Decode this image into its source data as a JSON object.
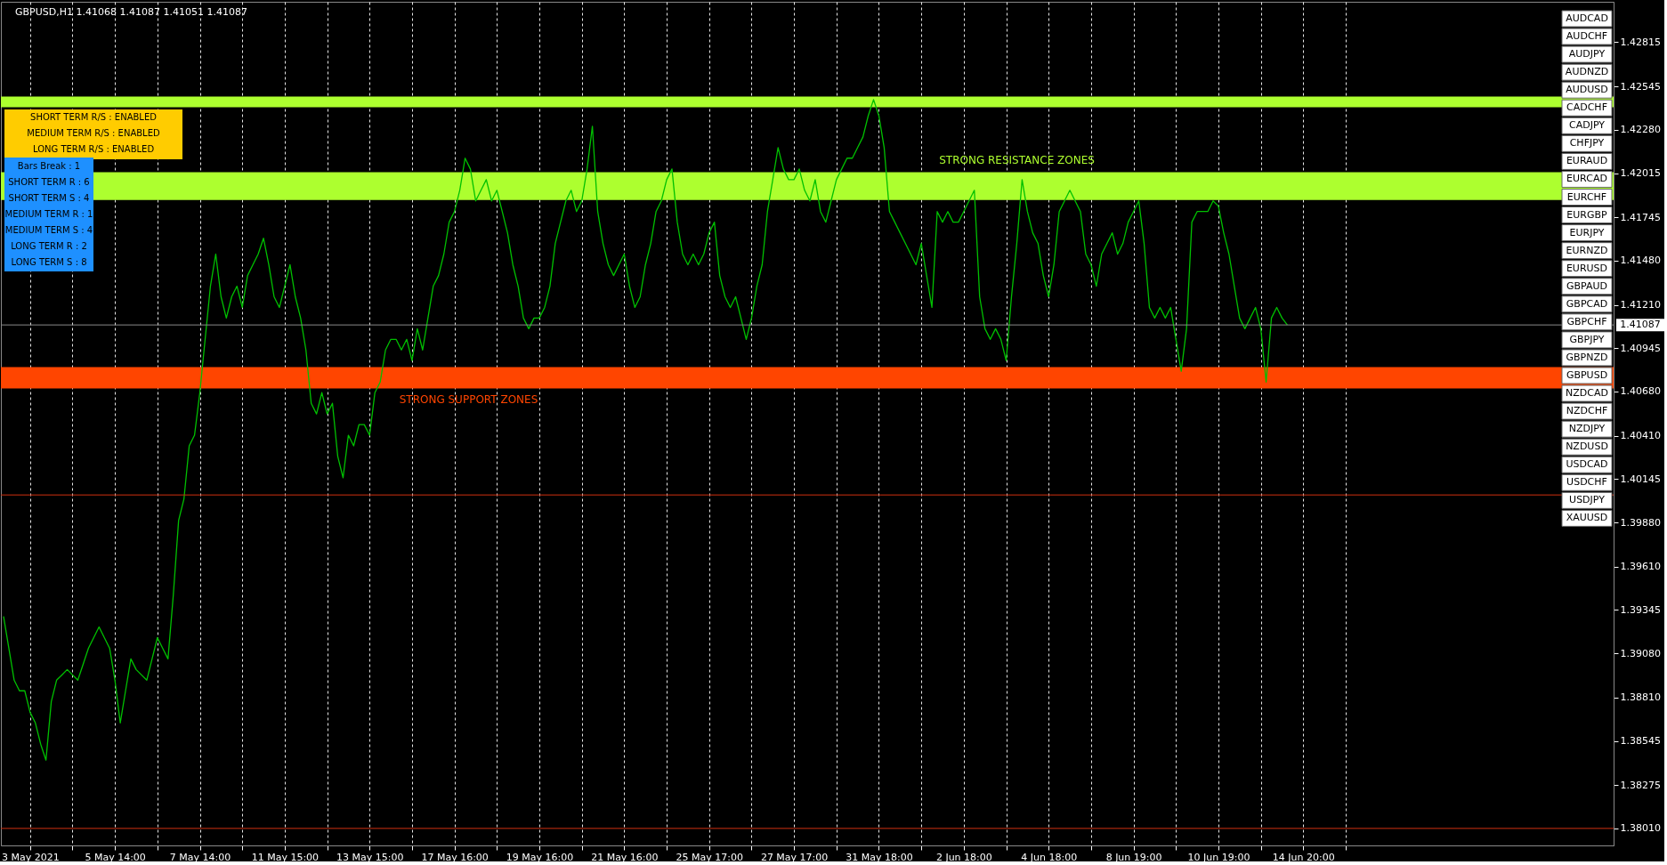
{
  "chart_data": {
    "type": "line",
    "title": "GBPUSD,H1 1.41068 1.41087 1.41051 1.41087",
    "categories": [
      null,
      null,
      null,
      null,
      null,
      "3 May 2021",
      null,
      null,
      null,
      null,
      null,
      null,
      null,
      null,
      null,
      null,
      null,
      null,
      null,
      null,
      null,
      "5 May 14:00",
      null,
      null,
      null,
      null,
      null,
      null,
      null,
      null,
      null,
      null,
      null,
      null,
      null,
      null,
      null,
      "7 May 14:00",
      null,
      null,
      null,
      null,
      null,
      null,
      null,
      null,
      null,
      null,
      null,
      null,
      null,
      null,
      null,
      "11 May 15:00",
      null,
      null,
      null,
      null,
      null,
      null,
      null,
      null,
      null,
      null,
      null,
      null,
      null,
      null,
      null,
      "13 May 15:00",
      null,
      null,
      null,
      null,
      null,
      null,
      null,
      null,
      null,
      null,
      null,
      null,
      null,
      null,
      null,
      "17 May 16:00",
      null,
      null,
      null,
      null,
      null,
      null,
      null,
      null,
      null,
      null,
      null,
      null,
      null,
      null,
      null,
      "19 May 16:00",
      null,
      null,
      null,
      null,
      null,
      null,
      null,
      null,
      null,
      null,
      null,
      null,
      null,
      null,
      null,
      "21 May 16:00",
      null,
      null,
      null,
      null,
      null,
      null,
      null,
      null,
      null,
      null,
      null,
      null,
      null,
      null,
      null,
      "25 May 17:00",
      null,
      null,
      null,
      null,
      null,
      null,
      null,
      null,
      null,
      null,
      null,
      null,
      null,
      null,
      null,
      "27 May 17:00",
      null,
      null,
      null,
      null,
      null,
      null,
      null,
      null,
      null,
      null,
      null,
      null,
      null,
      null,
      null,
      "31 May 18:00",
      null,
      null,
      null,
      null,
      null,
      null,
      null,
      null,
      null,
      null,
      null,
      null,
      null,
      null,
      null,
      "2 Jun 18:00",
      null,
      null,
      null,
      null,
      null,
      null,
      null,
      null,
      null,
      null,
      null,
      null,
      null,
      null,
      null,
      "4 Jun 18:00",
      null,
      null,
      null,
      null,
      null,
      null,
      null,
      null,
      null,
      null,
      null,
      null,
      null,
      null,
      null,
      "8 Jun 19:00",
      null,
      null,
      null,
      null,
      null,
      null,
      null,
      null,
      null,
      null,
      null,
      null,
      null,
      null,
      null,
      "10 Jun 19:00",
      null,
      null,
      null,
      null,
      null,
      null,
      null,
      null,
      null,
      null,
      null,
      null,
      null,
      null,
      null,
      "14 Jun 20:00",
      null,
      null,
      null,
      null,
      null,
      null,
      null,
      null,
      null,
      null,
      null,
      null,
      null,
      null,
      null,
      null,
      null,
      null,
      null,
      null,
      null,
      null,
      null,
      null,
      null,
      null,
      null,
      null,
      null,
      null,
      null,
      null,
      null,
      null,
      null,
      null,
      null,
      null,
      null,
      null,
      null,
      null,
      null,
      null,
      null,
      null,
      null,
      null,
      null,
      null,
      null,
      null,
      null,
      null,
      null,
      null,
      null,
      null
    ],
    "series": [
      {
        "color": "#00c000",
        "values": [
          1.39306,
          1.39111,
          1.38916,
          1.38851,
          1.38851,
          1.3872,
          1.38655,
          1.38525,
          1.38427,
          1.38785,
          1.38916,
          1.38948,
          1.38981,
          1.38948,
          1.38916,
          1.39013,
          1.39111,
          1.39176,
          1.39241,
          1.39176,
          1.39111,
          1.38916,
          1.38655,
          1.38851,
          1.39046,
          1.38981,
          1.38948,
          1.38916,
          1.39046,
          1.39176,
          1.39111,
          1.39046,
          1.39436,
          1.39892,
          1.40022,
          1.40348,
          1.40413,
          1.40673,
          1.40999,
          1.41324,
          1.4152,
          1.41259,
          1.41129,
          1.41259,
          1.41324,
          1.41194,
          1.41389,
          1.41455,
          1.4152,
          1.41617,
          1.41455,
          1.41259,
          1.41194,
          1.41324,
          1.41455,
          1.41259,
          1.41129,
          1.40934,
          1.40608,
          1.40543,
          1.40673,
          1.40543,
          1.40608,
          1.40283,
          1.40153,
          1.40413,
          1.40348,
          1.40478,
          1.40478,
          1.40413,
          1.40673,
          1.40738,
          1.40934,
          1.40999,
          1.40999,
          1.40934,
          1.40999,
          1.40869,
          1.41064,
          1.40934,
          1.41129,
          1.41324,
          1.41389,
          1.4152,
          1.41715,
          1.4178,
          1.4191,
          1.42106,
          1.4204,
          1.41845,
          1.4191,
          1.41975,
          1.41845,
          1.4191,
          1.4178,
          1.4165,
          1.41455,
          1.41324,
          1.41129,
          1.41064,
          1.41129,
          1.41129,
          1.41194,
          1.41324,
          1.41585,
          1.41715,
          1.41845,
          1.4191,
          1.4178,
          1.41845,
          1.4204,
          1.42301,
          1.4178,
          1.41585,
          1.41455,
          1.41389,
          1.41455,
          1.4152,
          1.41324,
          1.41194,
          1.41259,
          1.41455,
          1.41585,
          1.4178,
          1.41845,
          1.41975,
          1.4204,
          1.41715,
          1.4152,
          1.41455,
          1.4152,
          1.41455,
          1.4152,
          1.4165,
          1.41715,
          1.41389,
          1.41259,
          1.41194,
          1.41259,
          1.41129,
          1.40999,
          1.41129,
          1.41324,
          1.41455,
          1.4178,
          1.41975,
          1.42171,
          1.4204,
          1.41975,
          1.41975,
          1.4204,
          1.4191,
          1.41845,
          1.41975,
          1.4178,
          1.41715,
          1.41845,
          1.41975,
          1.4204,
          1.42106,
          1.42106,
          1.42171,
          1.42236,
          1.42366,
          1.42464,
          1.42366,
          1.42171,
          1.4178,
          1.41715,
          1.4165,
          1.41585,
          1.4152,
          1.41455,
          1.41585,
          1.41389,
          1.41194,
          1.4178,
          1.41715,
          1.4178,
          1.41715,
          1.41715,
          1.4178,
          1.41845,
          1.4191,
          1.41259,
          1.41064,
          1.40999,
          1.41064,
          1.40999,
          1.40869,
          1.41259,
          1.41585,
          1.41975,
          1.4178,
          1.4165,
          1.41585,
          1.41389,
          1.41259,
          1.41455,
          1.4178,
          1.41845,
          1.4191,
          1.41845,
          1.4178,
          1.4152,
          1.41455,
          1.41324,
          1.4152,
          1.41585,
          1.4165,
          1.4152,
          1.41585,
          1.41715,
          1.4178,
          1.41845,
          1.41585,
          1.41194,
          1.41129,
          1.41194,
          1.41129,
          1.41194,
          1.40999,
          1.40804,
          1.41064,
          1.41715,
          1.4178,
          1.4178,
          1.4178,
          1.41845,
          1.41813,
          1.4165,
          1.4152,
          1.41324,
          1.41129,
          1.41064,
          1.41129,
          1.41194,
          1.41064,
          1.40738,
          1.41129,
          1.41194,
          1.41129,
          1.41087,
          null,
          null,
          null,
          null,
          null,
          null,
          null,
          null,
          null,
          null,
          null,
          null,
          null,
          null,
          null,
          null,
          null,
          null,
          null,
          null,
          null,
          null,
          null,
          null,
          null,
          null,
          null,
          null,
          null,
          null,
          null,
          null,
          null,
          null,
          null,
          null,
          null,
          null,
          null,
          null,
          null,
          null,
          null,
          null,
          null,
          null,
          null,
          null,
          null,
          null,
          null,
          null,
          null,
          null,
          null,
          null,
          null,
          null,
          null,
          null,
          null
        ]
      }
    ],
    "ylim": [
      1.37906,
      1.43062
    ],
    "yticks": [
      {
        "value": 1.42815,
        "label": "1.42815"
      },
      {
        "value": 1.42545,
        "label": "1.42545"
      },
      {
        "value": 1.4228,
        "label": "1.42280"
      },
      {
        "value": 1.42015,
        "label": "1.42015"
      },
      {
        "value": 1.41745,
        "label": "1.41745"
      },
      {
        "value": 1.4148,
        "label": "1.41480"
      },
      {
        "value": 1.4121,
        "label": "1.41210"
      },
      {
        "value": 1.40945,
        "label": "1.40945"
      },
      {
        "value": 1.4068,
        "label": "1.40680"
      },
      {
        "value": 1.4041,
        "label": "1.40410"
      },
      {
        "value": 1.40145,
        "label": "1.40145"
      },
      {
        "value": 1.3988,
        "label": "1.39880"
      },
      {
        "value": 1.3961,
        "label": "1.39610"
      },
      {
        "value": 1.39345,
        "label": "1.39345"
      },
      {
        "value": 1.3908,
        "label": "1.39080"
      },
      {
        "value": 1.3881,
        "label": "1.38810"
      },
      {
        "value": 1.38545,
        "label": "1.38545"
      },
      {
        "value": 1.38275,
        "label": "1.38275"
      },
      {
        "value": 1.3801,
        "label": "1.38010"
      }
    ],
    "grid": "x",
    "bands": [
      {
        "axis": "y",
        "from": 1.42418,
        "to": 1.42483,
        "color": "#adff2f"
      },
      {
        "axis": "y",
        "from": 1.41851,
        "to": 1.42021,
        "color": "#adff2f",
        "label": "STRONG RESISTANCE ZONES"
      },
      {
        "axis": "y",
        "from": 1.40699,
        "to": 1.40829,
        "color": "#ff4500",
        "label": "STRONG SUPPORT ZONES"
      }
    ],
    "ref_lines": [
      {
        "axis": "y",
        "value": 1.41087,
        "label": "1.41087",
        "color": "#8a8a8a"
      },
      {
        "axis": "y",
        "value": 1.40048,
        "color": "#d03010"
      },
      {
        "axis": "y",
        "value": 1.3801,
        "color": "#d03010"
      }
    ],
    "annotations": [
      "SHORT TERM R/S : ENABLED",
      "MEDIUM TERM R/S : ENABLED",
      "LONG TERM R/S : ENABLED",
      "Bars Break : 1",
      "SHORT TERM R : 6",
      "SHORT TERM S : 4",
      "MEDIUM TERM R : 1",
      "MEDIUM TERM S : 4",
      "LONG TERM R : 2",
      "LONG TERM S : 8",
      "AUDCAD",
      "AUDCHF",
      "AUDJPY",
      "AUDNZD",
      "AUDUSD",
      "CADCHF",
      "CADJPY",
      "CHFJPY",
      "EURAUD",
      "EURCAD",
      "EURCHF",
      "EURGBP",
      "EURJPY",
      "EURNZD",
      "EURUSD",
      "GBPAUD",
      "GBPCAD",
      "GBPCHF",
      "GBPJPY",
      "GBPNZD",
      "GBPUSD",
      "NZDCAD",
      "NZDCHF",
      "NZDJPY",
      "NZDUSD",
      "USDCAD",
      "USDCHF",
      "USDJPY",
      "XAUUSD"
    ]
  }
}
